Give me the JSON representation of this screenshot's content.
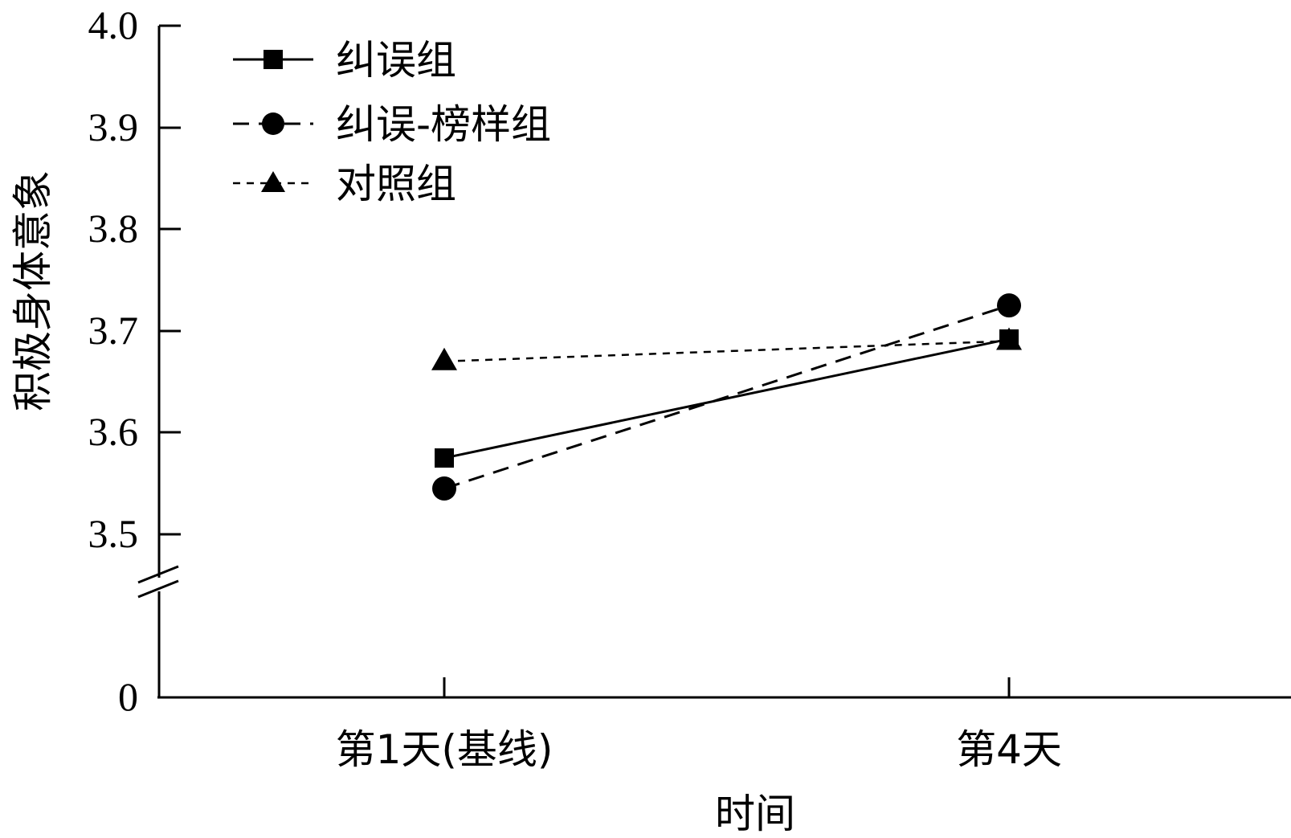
{
  "chart_data": {
    "type": "line",
    "title": "",
    "xlabel": "时间",
    "ylabel": "积极身体意象",
    "categories": [
      "第1天(基线)",
      "第4天"
    ],
    "y_ticks": [
      "4.0",
      "3.9",
      "3.8",
      "3.7",
      "3.6",
      "3.5",
      "0"
    ],
    "ylim": [
      3.5,
      4.0
    ],
    "y_axis_break": true,
    "grid": false,
    "legend_position": "top-left",
    "series": [
      {
        "name": "纠误组",
        "values": [
          3.575,
          3.692
        ],
        "marker": "square",
        "line": "solid",
        "color": "#000000"
      },
      {
        "name": "纠误-榜样组",
        "values": [
          3.545,
          3.725
        ],
        "marker": "circle",
        "line": "dashed",
        "color": "#000000"
      },
      {
        "name": "对照组",
        "values": [
          3.67,
          3.69
        ],
        "marker": "triangle",
        "line": "dotted",
        "color": "#000000"
      }
    ]
  }
}
